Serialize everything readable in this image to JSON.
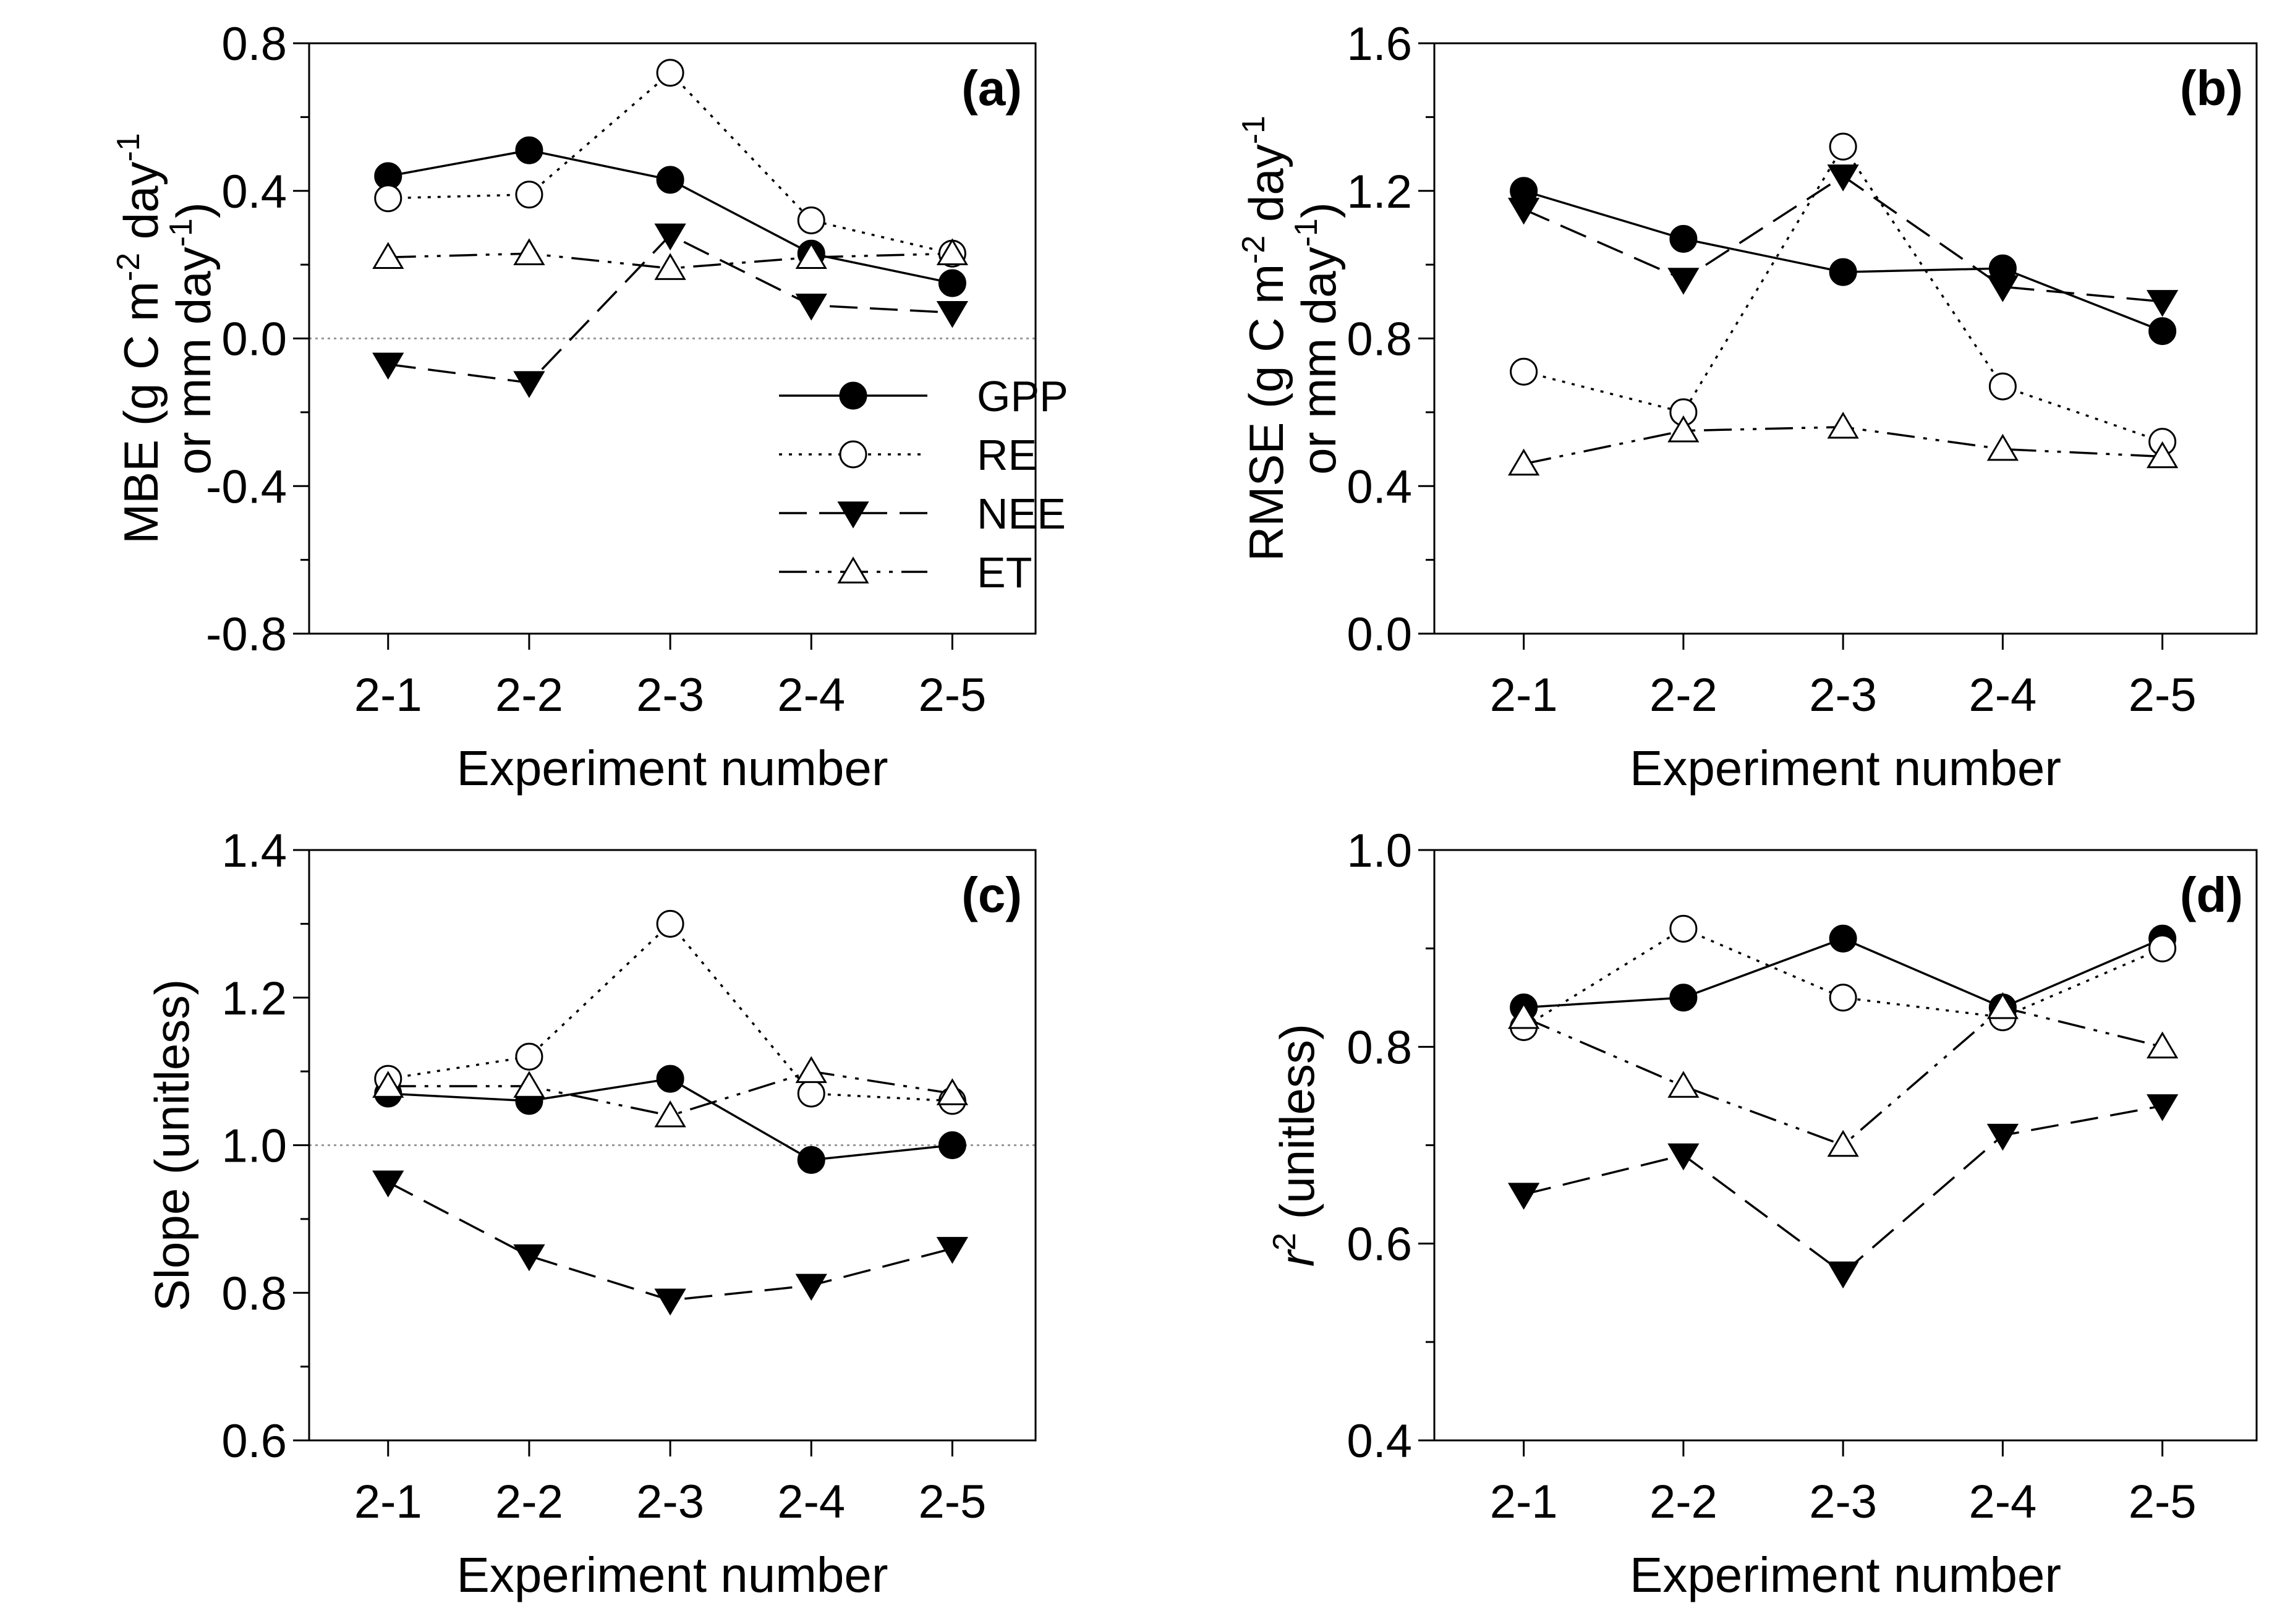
{
  "chart_data": [
    {
      "id": "a",
      "type": "line",
      "panel_label": "(a)",
      "xlabel": "Experiment number",
      "ylabel_lines": [
        "MBE (g C m",
        "-2",
        " day",
        "-1",
        "or mm day",
        "-1",
        ")"
      ],
      "categories": [
        "2-1",
        "2-2",
        "2-3",
        "2-4",
        "2-5"
      ],
      "ylim": [
        -0.8,
        0.8
      ],
      "yticks": [
        -0.8,
        -0.4,
        0.0,
        0.4,
        0.8
      ],
      "ytick_labels": [
        "-0.8",
        "-0.4",
        "0.0",
        "0.4",
        "0.8"
      ],
      "reference_line": 0.0,
      "series": [
        {
          "name": "GPP",
          "values": [
            0.44,
            0.51,
            0.43,
            0.23,
            0.15
          ]
        },
        {
          "name": "RE",
          "values": [
            0.38,
            0.39,
            0.72,
            0.32,
            0.23
          ]
        },
        {
          "name": "NEE",
          "values": [
            -0.07,
            -0.12,
            0.28,
            0.09,
            0.07
          ]
        },
        {
          "name": "ET",
          "values": [
            0.22,
            0.23,
            0.19,
            0.22,
            0.23
          ]
        }
      ]
    },
    {
      "id": "b",
      "type": "line",
      "panel_label": "(b)",
      "xlabel": "Experiment number",
      "ylabel_lines": [
        "RMSE (g C m",
        "-2",
        " day",
        "-1",
        "or mm day",
        "-1",
        ")"
      ],
      "categories": [
        "2-1",
        "2-2",
        "2-3",
        "2-4",
        "2-5"
      ],
      "ylim": [
        0.0,
        1.6
      ],
      "yticks": [
        0.0,
        0.4,
        0.8,
        1.2,
        1.6
      ],
      "ytick_labels": [
        "0.0",
        "0.4",
        "0.8",
        "1.2",
        "1.6"
      ],
      "reference_line": null,
      "series": [
        {
          "name": "GPP",
          "values": [
            1.2,
            1.07,
            0.98,
            0.99,
            0.82
          ]
        },
        {
          "name": "RE",
          "values": [
            0.71,
            0.6,
            1.32,
            0.67,
            0.52
          ]
        },
        {
          "name": "NEE",
          "values": [
            1.15,
            0.96,
            1.24,
            0.94,
            0.9
          ]
        },
        {
          "name": "ET",
          "values": [
            0.46,
            0.55,
            0.56,
            0.5,
            0.48
          ]
        }
      ]
    },
    {
      "id": "c",
      "type": "line",
      "panel_label": "(c)",
      "xlabel": "Experiment number",
      "ylabel_lines": [
        "Slope (unitless)"
      ],
      "categories": [
        "2-1",
        "2-2",
        "2-3",
        "2-4",
        "2-5"
      ],
      "ylim": [
        0.6,
        1.4
      ],
      "yticks": [
        0.6,
        0.8,
        1.0,
        1.2,
        1.4
      ],
      "ytick_labels": [
        "0.6",
        "0.8",
        "1.0",
        "1.2",
        "1.4"
      ],
      "reference_line": 1.0,
      "series": [
        {
          "name": "GPP",
          "values": [
            1.07,
            1.06,
            1.09,
            0.98,
            1.0
          ]
        },
        {
          "name": "RE",
          "values": [
            1.09,
            1.12,
            1.3,
            1.07,
            1.06
          ]
        },
        {
          "name": "NEE",
          "values": [
            0.95,
            0.85,
            0.79,
            0.81,
            0.86
          ]
        },
        {
          "name": "ET",
          "values": [
            1.08,
            1.08,
            1.04,
            1.1,
            1.07
          ]
        }
      ]
    },
    {
      "id": "d",
      "type": "line",
      "panel_label": "(d)",
      "xlabel": "Experiment number",
      "ylabel_lines": [
        "r",
        "2",
        " (unitless)"
      ],
      "categories": [
        "2-1",
        "2-2",
        "2-3",
        "2-4",
        "2-5"
      ],
      "ylim": [
        0.4,
        1.0
      ],
      "yticks": [
        0.4,
        0.6,
        0.8,
        1.0
      ],
      "ytick_labels": [
        "0.4",
        "0.6",
        "0.8",
        "1.0"
      ],
      "reference_line": null,
      "series": [
        {
          "name": "GPP",
          "values": [
            0.84,
            0.85,
            0.91,
            0.84,
            0.91
          ]
        },
        {
          "name": "RE",
          "values": [
            0.82,
            0.92,
            0.85,
            0.83,
            0.9
          ]
        },
        {
          "name": "NEE",
          "values": [
            0.65,
            0.69,
            0.57,
            0.71,
            0.74
          ]
        },
        {
          "name": "ET",
          "values": [
            0.83,
            0.76,
            0.7,
            0.84,
            0.8
          ]
        }
      ]
    }
  ],
  "legend": [
    "GPP",
    "RE",
    "NEE",
    "ET"
  ]
}
